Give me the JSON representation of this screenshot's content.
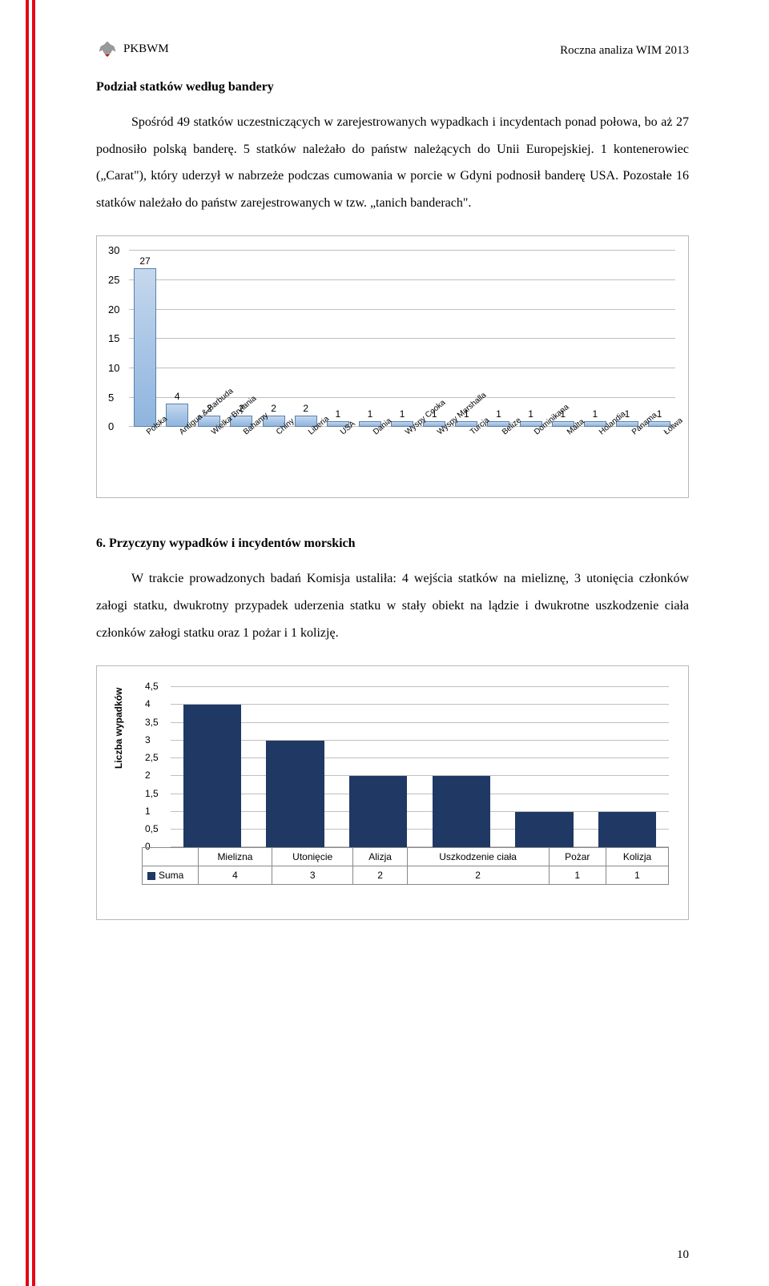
{
  "header": {
    "org": "PKBWM",
    "doc": "Roczna analiza WIM 2013"
  },
  "section1": {
    "title": "Podział statków według bandery",
    "paragraph": "Spośród 49 statków uczestniczących w zarejestrowanych wypadkach i incydentach ponad połowa, bo aż 27 podnosiło polską banderę. 5 statków należało do państw należących do Unii Europejskiej. 1 kontenerowiec („Carat\"), który uderzył w nabrzeże podczas cumowania w porcie w Gdyni podnosił banderę USA. Pozostałe 16 statków należało do państw zarejestrowanych w tzw. „tanich banderach\"."
  },
  "chart1": {
    "ymax": 30,
    "ystep": 5,
    "gridline_color": "#bfbfbf",
    "bar_fill": "#a8c5e6",
    "bar_border": "#5a7fa8",
    "categories": [
      "Polska",
      "Antigua & Barbuda",
      "Wielka Brytania",
      "Bahamy",
      "Chiny",
      "Liberia",
      "USA",
      "Dania",
      "Wyspy Cooka",
      "Wyspy Marshalla",
      "Turcja",
      "Belize",
      "Dominikana",
      "Malta",
      "Holandia",
      "Panama",
      "Łotwa"
    ],
    "values": [
      27,
      4,
      2,
      2,
      2,
      2,
      1,
      1,
      1,
      1,
      1,
      1,
      1,
      1,
      1,
      1,
      1
    ]
  },
  "section2": {
    "heading": "6.  Przyczyny wypadków i incydentów morskich",
    "paragraph": "W trakcie prowadzonych badań Komisja ustaliła: 4 wejścia statków na mieliznę, 3 utonięcia członków załogi statku, dwukrotny przypadek uderzenia statku w stały obiekt na lądzie i dwukrotne uszkodzenie ciała członków załogi statku oraz 1 pożar i 1 kolizję."
  },
  "chart2": {
    "ymax": 4.5,
    "ystep": 0.5,
    "y_title": "Liczba wypadków",
    "bar_fill": "#1f3864",
    "gridline_color": "#bfbfbf",
    "categories": [
      "Mielizna",
      "Utonięcie",
      "Alizja",
      "Uszkodzenie ciała",
      "Pożar",
      "Kolizja"
    ],
    "values": [
      4,
      3,
      2,
      2,
      1,
      1
    ],
    "row_label": "Suma"
  },
  "page_number": "10"
}
